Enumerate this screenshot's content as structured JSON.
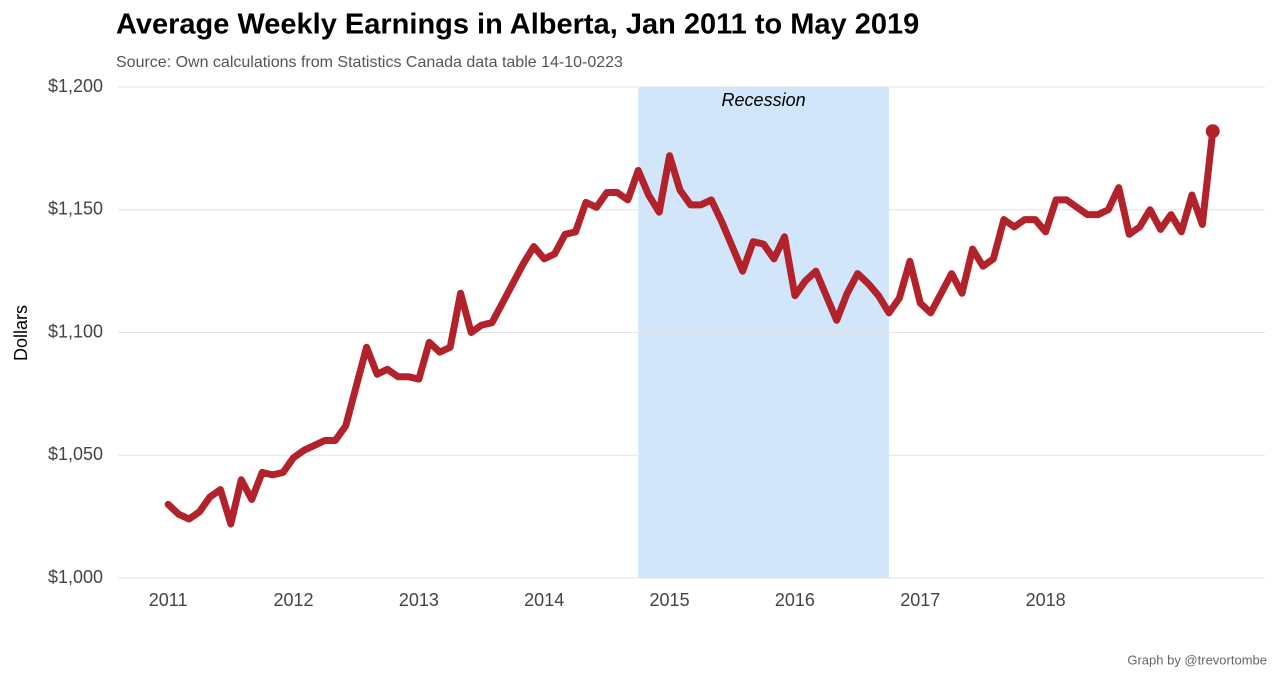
{
  "chart_data": {
    "type": "line",
    "title": "Average Weekly Earnings in Alberta, Jan 2011 to May 2019",
    "subtitle": "Source: Own calculations from Statistics Canada data table 14-10-0223",
    "y_label": "Dollars",
    "caption": "Graph by @trevortombe",
    "color": "#b2222a",
    "grid": true,
    "end_marker": true,
    "shaded_region": {
      "label": "Recession",
      "xstart": 2014.75,
      "xend": 2016.75,
      "color": "#d2e6fb"
    },
    "xlim": [
      2010.6,
      2019.75
    ],
    "xticks": [
      2011,
      2012,
      2013,
      2014,
      2015,
      2016,
      2017,
      2018
    ],
    "ylim": [
      1000,
      1200
    ],
    "yticks": [
      {
        "value": 1000,
        "label": "$1,000"
      },
      {
        "value": 1050,
        "label": "$1,050"
      },
      {
        "value": 1100,
        "label": "$1,100"
      },
      {
        "value": 1150,
        "label": "$1,150"
      },
      {
        "value": 1200,
        "label": "$1,200"
      }
    ],
    "x": [
      2011,
      2011.083,
      2011.167,
      2011.25,
      2011.333,
      2011.417,
      2011.5,
      2011.583,
      2011.667,
      2011.75,
      2011.833,
      2011.917,
      2012,
      2012.083,
      2012.167,
      2012.25,
      2012.333,
      2012.417,
      2012.5,
      2012.583,
      2012.667,
      2012.75,
      2012.833,
      2012.917,
      2013,
      2013.083,
      2013.167,
      2013.25,
      2013.333,
      2013.417,
      2013.5,
      2013.583,
      2013.667,
      2013.75,
      2013.833,
      2013.917,
      2014,
      2014.083,
      2014.167,
      2014.25,
      2014.333,
      2014.417,
      2014.5,
      2014.583,
      2014.667,
      2014.75,
      2014.833,
      2014.917,
      2015,
      2015.083,
      2015.167,
      2015.25,
      2015.333,
      2015.417,
      2015.5,
      2015.583,
      2015.667,
      2015.75,
      2015.833,
      2015.917,
      2016,
      2016.083,
      2016.167,
      2016.25,
      2016.333,
      2016.417,
      2016.5,
      2016.583,
      2016.667,
      2016.75,
      2016.833,
      2016.917,
      2017,
      2017.083,
      2017.167,
      2017.25,
      2017.333,
      2017.417,
      2017.5,
      2017.583,
      2017.667,
      2017.75,
      2017.833,
      2017.917,
      2018,
      2018.083,
      2018.167,
      2018.25,
      2018.333,
      2018.417,
      2018.5,
      2018.583,
      2018.667,
      2018.75,
      2018.833,
      2018.917,
      2019,
      2019.083,
      2019.167,
      2019.25,
      2019.333
    ],
    "values": [
      1030,
      1026,
      1024,
      1027,
      1033,
      1036,
      1022,
      1040,
      1032,
      1043,
      1042,
      1043,
      1049,
      1052,
      1054,
      1056,
      1056,
      1062,
      1078,
      1094,
      1083,
      1085,
      1082,
      1082,
      1081,
      1096,
      1092,
      1094,
      1116,
      1100,
      1103,
      1104,
      1112,
      1120,
      1128,
      1135,
      1130,
      1132,
      1140,
      1141,
      1153,
      1151,
      1157,
      1157,
      1154,
      1166,
      1156,
      1149,
      1172,
      1158,
      1152,
      1152,
      1154,
      1145,
      1135,
      1125,
      1137,
      1136,
      1130,
      1139,
      1115,
      1121,
      1125,
      1115,
      1105,
      1116,
      1124,
      1120,
      1115,
      1108,
      1114,
      1129,
      1112,
      1108,
      1116,
      1124,
      1116,
      1134,
      1127,
      1130,
      1146,
      1143,
      1146,
      1146,
      1141,
      1154,
      1154,
      1151,
      1148,
      1148,
      1150,
      1159,
      1140,
      1143,
      1150,
      1142,
      1148,
      1141,
      1156,
      1144,
      1182
    ]
  }
}
